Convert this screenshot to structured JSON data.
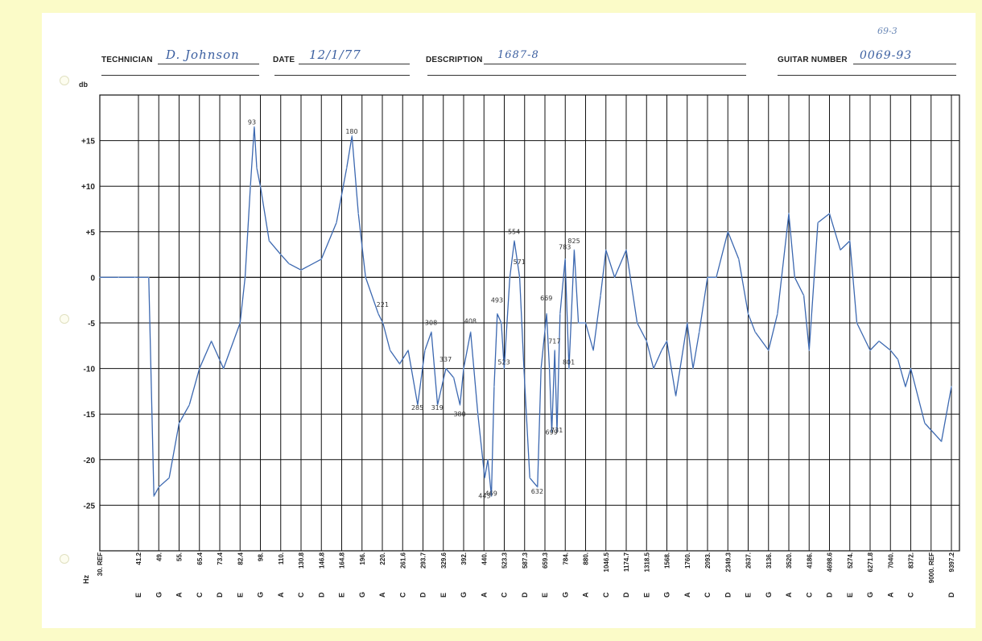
{
  "header": {
    "technician_label": "TECHNICIAN",
    "technician_value": "D. Johnson",
    "date_label": "DATE",
    "date_value": "12/1/77",
    "description_label": "DESCRIPTION",
    "description_value": "1687-8",
    "guitar_number_label": "GUITAR NUMBER",
    "guitar_number_value": "0069-93",
    "corner_note": "69-3"
  },
  "colors": {
    "curve": "#3c68b0",
    "curve_light": "#7aa0d4",
    "grid": "#111111",
    "paper": "#ffffff",
    "background": "#fbfbc8"
  },
  "chart_data": {
    "type": "line",
    "title": "",
    "xlabel": "Hz",
    "ylabel": "db",
    "ylim": [
      -30,
      20
    ],
    "grid": true,
    "yticks": [
      "+15",
      "+10",
      "+5",
      "0",
      "-5",
      "-10",
      "-15",
      "-20",
      "-25"
    ],
    "ytick_values": [
      15,
      10,
      5,
      0,
      -5,
      -10,
      -15,
      -20,
      -25
    ],
    "x_ticks": [
      {
        "freq": "30. REF",
        "note": ""
      },
      {
        "freq": "41.2",
        "note": "E"
      },
      {
        "freq": "49.",
        "note": "G"
      },
      {
        "freq": "55.",
        "note": "A"
      },
      {
        "freq": "65.4",
        "note": "C"
      },
      {
        "freq": "73.4",
        "note": "D"
      },
      {
        "freq": "82.4",
        "note": "E"
      },
      {
        "freq": "98.",
        "note": "G"
      },
      {
        "freq": "110.",
        "note": "A"
      },
      {
        "freq": "130.8",
        "note": "C"
      },
      {
        "freq": "146.8",
        "note": "D"
      },
      {
        "freq": "164.8",
        "note": "E"
      },
      {
        "freq": "196.",
        "note": "G"
      },
      {
        "freq": "220.",
        "note": "A"
      },
      {
        "freq": "261.6",
        "note": "C"
      },
      {
        "freq": "293.7",
        "note": "D"
      },
      {
        "freq": "329.6",
        "note": "E"
      },
      {
        "freq": "392.",
        "note": "G"
      },
      {
        "freq": "440.",
        "note": "A"
      },
      {
        "freq": "523.3",
        "note": "C"
      },
      {
        "freq": "587.3",
        "note": "D"
      },
      {
        "freq": "659.3",
        "note": "E"
      },
      {
        "freq": "784.",
        "note": "G"
      },
      {
        "freq": "880.",
        "note": "A"
      },
      {
        "freq": "1046.5",
        "note": "C"
      },
      {
        "freq": "1174.7",
        "note": "D"
      },
      {
        "freq": "1318.5",
        "note": "E"
      },
      {
        "freq": "1568.",
        "note": "G"
      },
      {
        "freq": "1760.",
        "note": "A"
      },
      {
        "freq": "2093.",
        "note": "C"
      },
      {
        "freq": "2349.3",
        "note": "D"
      },
      {
        "freq": "2637.",
        "note": "E"
      },
      {
        "freq": "3136.",
        "note": "G"
      },
      {
        "freq": "3520.",
        "note": "A"
      },
      {
        "freq": "4186.",
        "note": "C"
      },
      {
        "freq": "4698.6",
        "note": "D"
      },
      {
        "freq": "5274.",
        "note": "E"
      },
      {
        "freq": "6271.8",
        "note": "G"
      },
      {
        "freq": "7040.",
        "note": "A"
      },
      {
        "freq": "8372.",
        "note": "C"
      },
      {
        "freq": "9000. REF",
        "note": ""
      },
      {
        "freq": "9397.2",
        "note": "D"
      }
    ],
    "series": [
      {
        "points": [
          [
            30,
            0
          ],
          [
            35,
            0
          ],
          [
            40,
            0
          ],
          [
            45,
            0
          ],
          [
            47,
            -24
          ],
          [
            49,
            -23
          ],
          [
            52,
            -22
          ],
          [
            55,
            -16
          ],
          [
            60,
            -14
          ],
          [
            65.4,
            -10
          ],
          [
            70,
            -7
          ],
          [
            75,
            -10
          ],
          [
            82.4,
            -5
          ],
          [
            86,
            0
          ],
          [
            90,
            10
          ],
          [
            93,
            16.5
          ],
          [
            95,
            12
          ],
          [
            98,
            10
          ],
          [
            103,
            4
          ],
          [
            110,
            2.5
          ],
          [
            118,
            1.5
          ],
          [
            130.8,
            0.8
          ],
          [
            146.8,
            2
          ],
          [
            160,
            6
          ],
          [
            172,
            12
          ],
          [
            180,
            15.5
          ],
          [
            190,
            7
          ],
          [
            200,
            0
          ],
          [
            215,
            -4
          ],
          [
            221,
            -5
          ],
          [
            235,
            -8
          ],
          [
            255,
            -9.5
          ],
          [
            270,
            -8
          ],
          [
            285,
            -14
          ],
          [
            297,
            -8
          ],
          [
            308,
            -6
          ],
          [
            319,
            -14
          ],
          [
            337,
            -10
          ],
          [
            360,
            -11
          ],
          [
            380,
            -14
          ],
          [
            392,
            -10
          ],
          [
            408,
            -6
          ],
          [
            425,
            -15
          ],
          [
            443,
            -22
          ],
          [
            455,
            -20
          ],
          [
            469,
            -24
          ],
          [
            480,
            -12
          ],
          [
            493,
            -4
          ],
          [
            510,
            -5
          ],
          [
            523,
            -10
          ],
          [
            540,
            0
          ],
          [
            554,
            4
          ],
          [
            571,
            0
          ],
          [
            585,
            -10
          ],
          [
            605,
            -22
          ],
          [
            632,
            -23
          ],
          [
            645,
            -10
          ],
          [
            669,
            -4
          ],
          [
            685,
            -10
          ],
          [
            699,
            -17
          ],
          [
            717,
            -8
          ],
          [
            731,
            -17
          ],
          [
            750,
            -4
          ],
          [
            783,
            2
          ],
          [
            801,
            -10
          ],
          [
            825,
            3
          ],
          [
            845,
            -5
          ],
          [
            880,
            -5
          ],
          [
            940,
            -8
          ],
          [
            1000,
            -2
          ],
          [
            1046.5,
            3
          ],
          [
            1100,
            0
          ],
          [
            1174.7,
            3
          ],
          [
            1250,
            -5
          ],
          [
            1318.5,
            -7
          ],
          [
            1400,
            -10
          ],
          [
            1500,
            -8
          ],
          [
            1568,
            -7
          ],
          [
            1650,
            -13
          ],
          [
            1760,
            -5
          ],
          [
            1850,
            -10
          ],
          [
            1950,
            -6
          ],
          [
            2093,
            0
          ],
          [
            2200,
            0
          ],
          [
            2349.3,
            5
          ],
          [
            2500,
            2
          ],
          [
            2637,
            -4
          ],
          [
            2800,
            -6
          ],
          [
            3136,
            -8
          ],
          [
            3300,
            -4
          ],
          [
            3520,
            7
          ],
          [
            3700,
            0
          ],
          [
            4000,
            -2
          ],
          [
            4186,
            -8
          ],
          [
            4400,
            6
          ],
          [
            4698.6,
            7
          ],
          [
            5000,
            3
          ],
          [
            5274,
            4
          ],
          [
            5600,
            -5
          ],
          [
            6271.8,
            -8
          ],
          [
            6600,
            -7
          ],
          [
            7040,
            -8
          ],
          [
            7500,
            -9
          ],
          [
            8000,
            -12
          ],
          [
            8372,
            -10
          ],
          [
            8800,
            -16
          ],
          [
            9200,
            -18
          ],
          [
            9397.2,
            -12
          ]
        ]
      }
    ],
    "annotations": [
      {
        "freq": 93,
        "db": 16.5,
        "label": "93"
      },
      {
        "freq": 180,
        "db": 15.5,
        "label": "180"
      },
      {
        "freq": 221,
        "db": -3.5,
        "label": "221"
      },
      {
        "freq": 285,
        "db": -14.8,
        "label": "285"
      },
      {
        "freq": 308,
        "db": -5.5,
        "label": "308"
      },
      {
        "freq": 319,
        "db": -14.8,
        "label": "319"
      },
      {
        "freq": 337,
        "db": -9.5,
        "label": "337"
      },
      {
        "freq": 380,
        "db": -15.5,
        "label": "380"
      },
      {
        "freq": 408,
        "db": -5.3,
        "label": "408"
      },
      {
        "freq": 443,
        "db": -24.5,
        "label": "443"
      },
      {
        "freq": 469,
        "db": -24.2,
        "label": "469"
      },
      {
        "freq": 493,
        "db": -3,
        "label": "493"
      },
      {
        "freq": 523,
        "db": -9.8,
        "label": "523"
      },
      {
        "freq": 554,
        "db": 4.5,
        "label": "554"
      },
      {
        "freq": 571,
        "db": 1.2,
        "label": "571"
      },
      {
        "freq": 632,
        "db": -24,
        "label": "632"
      },
      {
        "freq": 669,
        "db": -2.8,
        "label": "669"
      },
      {
        "freq": 699,
        "db": -17.5,
        "label": "699"
      },
      {
        "freq": 717,
        "db": -7.5,
        "label": "717"
      },
      {
        "freq": 731,
        "db": -17.3,
        "label": "731"
      },
      {
        "freq": 783,
        "db": 2.8,
        "label": "783"
      },
      {
        "freq": 801,
        "db": -9.8,
        "label": "801"
      },
      {
        "freq": 825,
        "db": 3.5,
        "label": "825"
      }
    ]
  }
}
